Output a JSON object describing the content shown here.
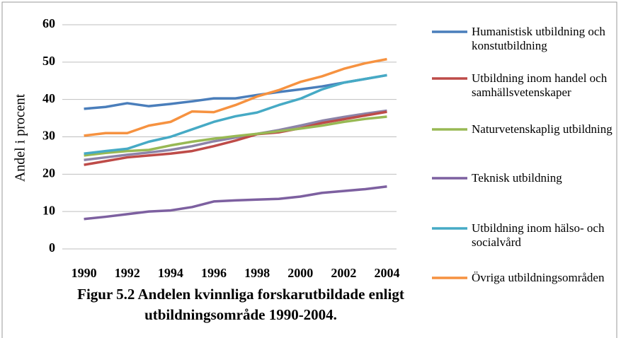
{
  "chart_data": {
    "type": "line",
    "title": "Figur 5.2 Andelen kvinnliga forskarutbildade enligt utbildningsområde 1990-2004.",
    "ylabel": "Andel i procent",
    "x": [
      1990,
      1991,
      1992,
      1993,
      1994,
      1995,
      1996,
      1997,
      1998,
      1999,
      2000,
      2001,
      2002,
      2003,
      2004
    ],
    "xlim": [
      1989,
      2005
    ],
    "xticks": [
      1990,
      1992,
      1994,
      1996,
      1998,
      2000,
      2002,
      2004
    ],
    "ylim": [
      0,
      60
    ],
    "yticks": [
      0,
      10,
      20,
      30,
      40,
      50,
      60
    ],
    "grid": true,
    "legend": "right",
    "series": [
      {
        "name": "Humanistisk utbildning och konstutbildning",
        "color": "#4a7ebb",
        "values": [
          37.5,
          38,
          39,
          38.2,
          38.8,
          39.5,
          40.3,
          40.3,
          41.2,
          42,
          42.7,
          43.5,
          44.5,
          45.5,
          46.5
        ]
      },
      {
        "name": "Utbildning inom handel och samhällsvetenskaper",
        "color": "#be4b48",
        "values": [
          22.5,
          23.5,
          24.5,
          25,
          25.5,
          26.2,
          27.5,
          29,
          30.7,
          31.2,
          32.3,
          33.7,
          34.7,
          35.7,
          36.7
        ]
      },
      {
        "name": "Naturvetenskaplig utbildning",
        "color": "#98b954",
        "values": [
          25,
          25.7,
          26.2,
          26.5,
          27.7,
          28.7,
          29.5,
          30.2,
          30.8,
          31.5,
          32.2,
          33,
          34,
          34.8,
          35.4
        ]
      },
      {
        "name": "Teknisk utbildning",
        "color": "#7d60a0",
        "values": [
          8,
          8.6,
          9.3,
          10,
          10.3,
          11.2,
          12.7,
          13,
          13.2,
          13.4,
          14,
          15,
          15.5,
          16,
          16.7
        ]
      },
      {
        "name": "Utbildning inom hälso- och socialvård",
        "color": "#46aac5",
        "values": [
          25.5,
          26.2,
          26.8,
          28.7,
          30,
          32,
          34,
          35.5,
          36.5,
          38.5,
          40.2,
          42.7,
          44.5,
          45.5,
          46.5
        ]
      },
      {
        "name": "Övriga utbildningsområden",
        "color": "#f69240",
        "values": [
          30.3,
          31,
          31,
          33,
          34,
          36.8,
          36.6,
          38.5,
          40.8,
          42.5,
          44.7,
          46.2,
          48.2,
          49.7,
          50.8
        ]
      },
      {
        "color": "#8c83a8",
        "values": [
          23.8,
          24.5,
          25.2,
          25.8,
          26.5,
          27.5,
          28.8,
          29.8,
          30.8,
          31.8,
          33,
          34.3,
          35.3,
          36.2,
          37
        ]
      }
    ]
  }
}
